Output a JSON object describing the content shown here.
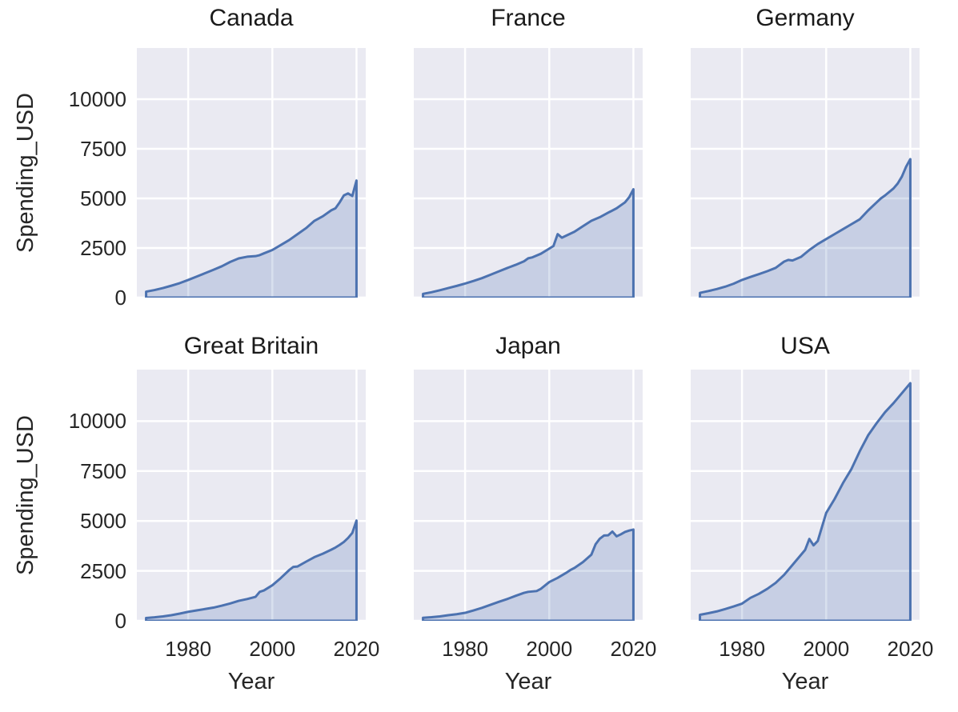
{
  "chart_data": {
    "type": "area",
    "layout": "facet-grid-2x3-shared-axes",
    "xlabel": "Year",
    "ylabel": "Spending_USD",
    "x_ticks": [
      1980,
      2000,
      2020
    ],
    "x_tick_labels": [
      "1980",
      "2000",
      "2020"
    ],
    "y_ticks": [
      0,
      2500,
      5000,
      7500,
      10000
    ],
    "y_tick_labels": [
      "0",
      "2500",
      "5000",
      "7500",
      "10000"
    ],
    "x_domain": [
      1967.8,
      2022.2
    ],
    "y_domain": [
      0,
      12580
    ],
    "grid": true,
    "legend": false,
    "colors": {
      "line": "#4c72b0",
      "fill": "rgba(76,114,176,0.22)",
      "plot_bg": "#eaeaf2",
      "grid": "#ffffff",
      "tick_text": "#262626",
      "title_text": "#1a1a1a",
      "figure_bg": "#ffffff"
    },
    "facets": [
      {
        "title": "Canada",
        "years": [
          1970,
          1972,
          1974,
          1976,
          1978,
          1980,
          1982,
          1984,
          1986,
          1988,
          1990,
          1992,
          1994,
          1996,
          1997,
          1998,
          2000,
          2002,
          2004,
          2006,
          2008,
          2010,
          2012,
          2014,
          2015,
          2016,
          2017,
          2018,
          2019,
          2020
        ],
        "values": [
          300,
          380,
          480,
          600,
          730,
          890,
          1060,
          1230,
          1400,
          1580,
          1800,
          1975,
          2060,
          2090,
          2140,
          2230,
          2400,
          2650,
          2900,
          3200,
          3500,
          3870,
          4100,
          4400,
          4500,
          4800,
          5150,
          5250,
          5120,
          5900
        ]
      },
      {
        "title": "France",
        "years": [
          1970,
          1972,
          1974,
          1976,
          1978,
          1980,
          1982,
          1984,
          1986,
          1988,
          1990,
          1992,
          1994,
          1995,
          1996,
          1998,
          2000,
          2001,
          2002,
          2003,
          2004,
          2006,
          2008,
          2010,
          2012,
          2014,
          2016,
          2018,
          2019,
          2020
        ],
        "values": [
          190,
          270,
          370,
          480,
          590,
          710,
          840,
          980,
          1150,
          1320,
          1490,
          1650,
          1830,
          1980,
          2030,
          2210,
          2470,
          2600,
          3200,
          3020,
          3120,
          3320,
          3600,
          3870,
          4050,
          4280,
          4500,
          4800,
          5060,
          5460
        ]
      },
      {
        "title": "Germany",
        "years": [
          1970,
          1972,
          1974,
          1976,
          1978,
          1980,
          1982,
          1984,
          1986,
          1988,
          1990,
          1991,
          1992,
          1994,
          1996,
          1998,
          2000,
          2002,
          2004,
          2006,
          2008,
          2010,
          2012,
          2013,
          2014,
          2016,
          2017,
          2018,
          2019,
          2020
        ],
        "values": [
          240,
          330,
          430,
          550,
          700,
          890,
          1040,
          1180,
          1330,
          1500,
          1815,
          1900,
          1870,
          2050,
          2400,
          2700,
          2950,
          3200,
          3450,
          3700,
          3950,
          4400,
          4800,
          5000,
          5150,
          5500,
          5750,
          6100,
          6600,
          6980
        ]
      },
      {
        "title": "Great Britain",
        "years": [
          1970,
          1972,
          1974,
          1976,
          1978,
          1980,
          1982,
          1984,
          1986,
          1988,
          1990,
          1992,
          1994,
          1996,
          1997,
          1998,
          2000,
          2002,
          2004,
          2005,
          2006,
          2008,
          2010,
          2012,
          2014,
          2015,
          2016,
          2017,
          2018,
          2019,
          2020
        ],
        "values": [
          140,
          175,
          220,
          280,
          360,
          450,
          520,
          590,
          660,
          760,
          870,
          1000,
          1090,
          1200,
          1450,
          1520,
          1780,
          2140,
          2540,
          2700,
          2720,
          2960,
          3190,
          3360,
          3560,
          3670,
          3800,
          3950,
          4150,
          4400,
          5020
        ]
      },
      {
        "title": "Japan",
        "years": [
          1970,
          1972,
          1974,
          1976,
          1978,
          1980,
          1982,
          1984,
          1986,
          1988,
          1990,
          1992,
          1994,
          1995,
          1996,
          1997,
          1998,
          2000,
          2002,
          2004,
          2005,
          2006,
          2008,
          2010,
          2011,
          2012,
          2013,
          2014,
          2015,
          2016,
          2017,
          2018,
          2019,
          2020
        ],
        "values": [
          150,
          180,
          220,
          280,
          330,
          400,
          520,
          650,
          800,
          950,
          1090,
          1250,
          1400,
          1450,
          1470,
          1490,
          1600,
          1940,
          2150,
          2400,
          2540,
          2650,
          2940,
          3310,
          3830,
          4110,
          4270,
          4280,
          4470,
          4230,
          4330,
          4450,
          4520,
          4570
        ]
      },
      {
        "title": "USA",
        "years": [
          1970,
          1972,
          1974,
          1976,
          1978,
          1980,
          1982,
          1984,
          1986,
          1988,
          1990,
          1992,
          1994,
          1995,
          1996,
          1997,
          1998,
          2000,
          2002,
          2004,
          2006,
          2008,
          2010,
          2012,
          2014,
          2016,
          2018,
          2019,
          2020
        ],
        "values": [
          300,
          380,
          470,
          590,
          720,
          860,
          1150,
          1350,
          1600,
          1900,
          2300,
          2800,
          3300,
          3550,
          4100,
          3780,
          4000,
          5400,
          6100,
          6900,
          7600,
          8500,
          9300,
          9900,
          10450,
          10900,
          11400,
          11650,
          11900
        ]
      }
    ]
  }
}
